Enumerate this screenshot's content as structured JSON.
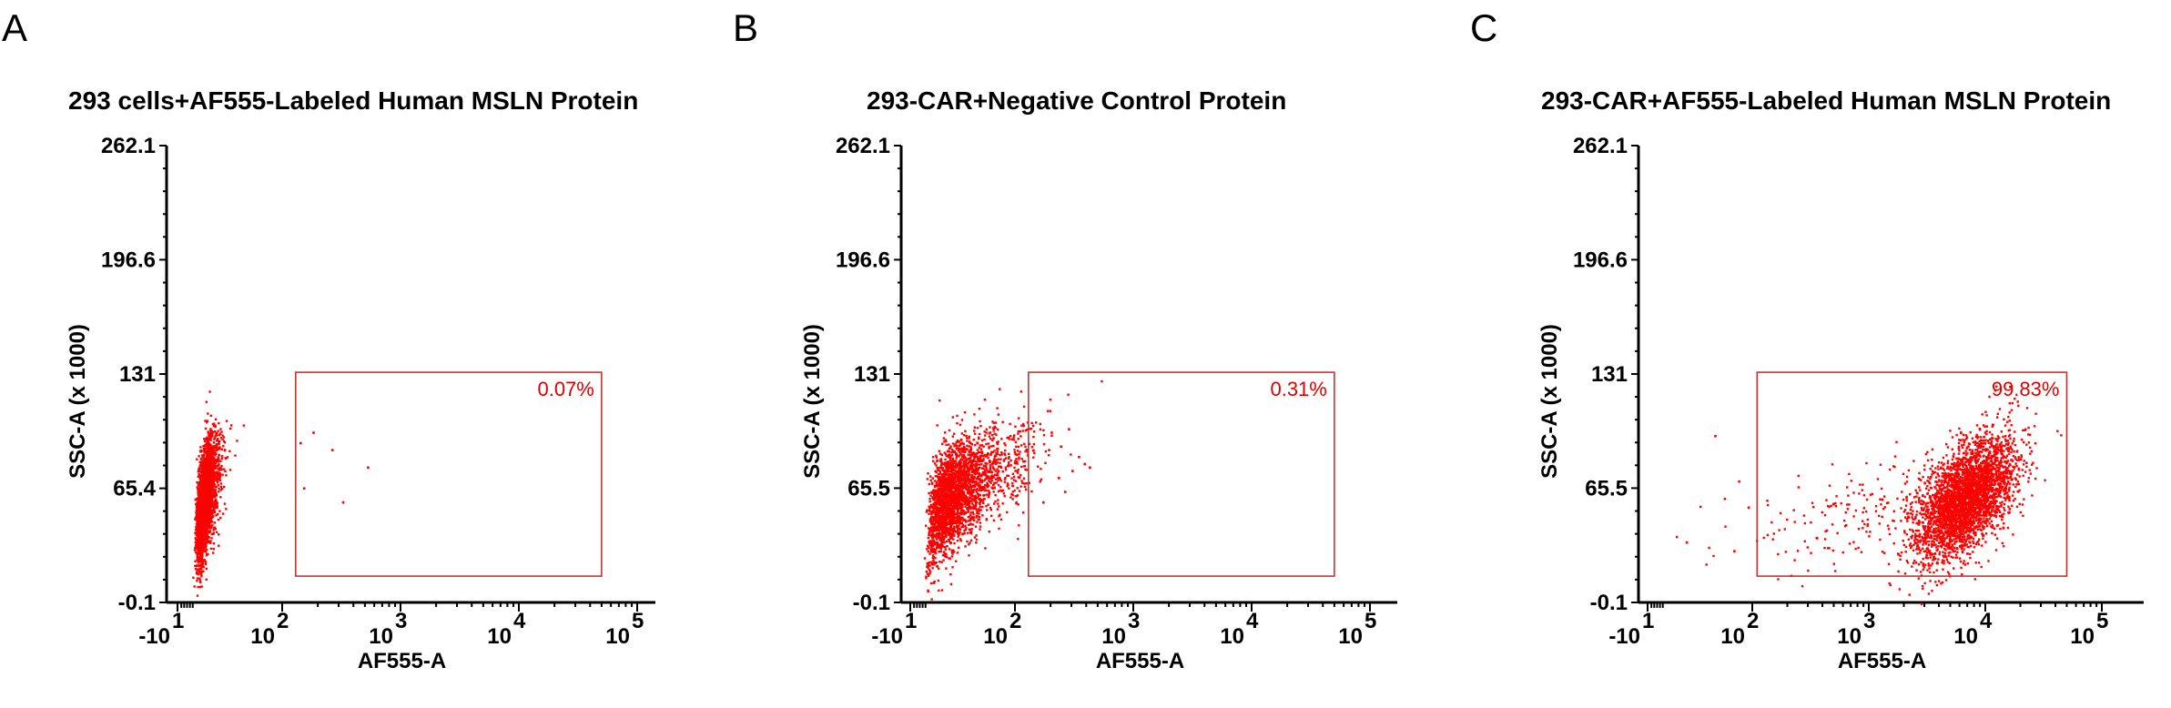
{
  "figure": {
    "colors": {
      "dots": "#ff0000",
      "gate_stroke": "#c83232",
      "gate_label": "#e00000",
      "axes": "#000000"
    }
  },
  "chart_data": [
    {
      "type": "scatter",
      "panel_letter": "A",
      "title": "293 cells+AF555-Labeled Human MSLN Protein",
      "xlabel": "AF555-A",
      "ylabel": "SSC-A (x 1000)",
      "x_scale": "biexponential (log)",
      "x_ticks": [
        {
          "base": "-10",
          "exp": "1",
          "value": -10
        },
        {
          "base": "10",
          "exp": "2",
          "value": 100
        },
        {
          "base": "10",
          "exp": "3",
          "value": 1000
        },
        {
          "base": "10",
          "exp": "4",
          "value": 10000
        },
        {
          "base": "10",
          "exp": "5",
          "value": 100000
        }
      ],
      "y_ticks": [
        "-0.1",
        "65.4",
        "131",
        "196.6",
        "262.1"
      ],
      "ylim": [
        -0.1,
        262.1
      ],
      "gate": {
        "label": "0.07%",
        "x_range": [
          130,
          50000
        ],
        "y_range": [
          15,
          132
        ]
      },
      "populations": [
        {
          "x_center_log": 1.25,
          "y_center": 60,
          "x_spread_log": 0.13,
          "y_spread": 17,
          "count": 2600
        }
      ],
      "outlier_points": [
        {
          "x": 180,
          "y": 98
        },
        {
          "x": 260,
          "y": 88
        },
        {
          "x": 520,
          "y": 78
        },
        {
          "x": 320,
          "y": 58
        },
        {
          "x": 150,
          "y": 66
        },
        {
          "x": 140,
          "y": 92
        }
      ]
    },
    {
      "type": "scatter",
      "panel_letter": "B",
      "title": "293-CAR+Negative Control Protein",
      "xlabel": "AF555-A",
      "ylabel": "SSC-A (x 1000)",
      "x_scale": "biexponential (log)",
      "x_ticks": [
        {
          "base": "-10",
          "exp": "1",
          "value": -10
        },
        {
          "base": "10",
          "exp": "2",
          "value": 100
        },
        {
          "base": "10",
          "exp": "3",
          "value": 1000
        },
        {
          "base": "10",
          "exp": "4",
          "value": 10000
        },
        {
          "base": "10",
          "exp": "5",
          "value": 100000
        }
      ],
      "y_ticks": [
        "-0.1",
        "65.5",
        "131",
        "196.6",
        "262.1"
      ],
      "ylim": [
        -0.1,
        262.1
      ],
      "gate": {
        "label": "0.31%",
        "x_range": [
          130,
          50000
        ],
        "y_range": [
          15,
          132
        ]
      },
      "populations": [
        {
          "x_center_log": 1.55,
          "y_center": 63,
          "x_spread_log": 0.24,
          "y_spread": 17,
          "count": 2600
        }
      ],
      "outlier_points": [
        {
          "x": 200,
          "y": 98
        },
        {
          "x": 280,
          "y": 100
        },
        {
          "x": 340,
          "y": 84
        },
        {
          "x": 380,
          "y": 80
        },
        {
          "x": 230,
          "y": 72
        },
        {
          "x": 260,
          "y": 64
        },
        {
          "x": 170,
          "y": 58
        },
        {
          "x": 300,
          "y": 76
        },
        {
          "x": 190,
          "y": 88
        },
        {
          "x": 420,
          "y": 78
        },
        {
          "x": 240,
          "y": 90
        },
        {
          "x": 160,
          "y": 70
        }
      ]
    },
    {
      "type": "scatter",
      "panel_letter": "C",
      "title": "293-CAR+AF555-Labeled Human MSLN Protein",
      "xlabel": "AF555-A",
      "ylabel": "SSC-A (x 1000)",
      "x_scale": "biexponential (log)",
      "x_ticks": [
        {
          "base": "-10",
          "exp": "1",
          "value": -10
        },
        {
          "base": "10",
          "exp": "2",
          "value": 100
        },
        {
          "base": "10",
          "exp": "3",
          "value": 1000
        },
        {
          "base": "10",
          "exp": "4",
          "value": 10000
        },
        {
          "base": "10",
          "exp": "5",
          "value": 100000
        }
      ],
      "y_ticks": [
        "-0.1",
        "65.5",
        "131",
        "196.6",
        "262.1"
      ],
      "ylim": [
        -0.1,
        262.1
      ],
      "gate": {
        "label": "99.83%",
        "x_range": [
          110,
          50000
        ],
        "y_range": [
          15,
          132
        ]
      },
      "populations": [
        {
          "x_center_log": 3.82,
          "y_center": 60,
          "x_spread_log": 0.2,
          "y_spread": 17,
          "count": 3200
        },
        {
          "x_center_log": 2.85,
          "y_center": 52,
          "x_spread_log": 0.45,
          "y_spread": 15,
          "count": 170
        }
      ],
      "outlier_points": [
        {
          "x": 60,
          "y": 96
        },
        {
          "x": 30,
          "y": 35
        },
        {
          "x": 80,
          "y": 30
        },
        {
          "x": 70,
          "y": 60
        },
        {
          "x": 85,
          "y": 70
        },
        {
          "x": 95,
          "y": 55
        }
      ]
    }
  ]
}
